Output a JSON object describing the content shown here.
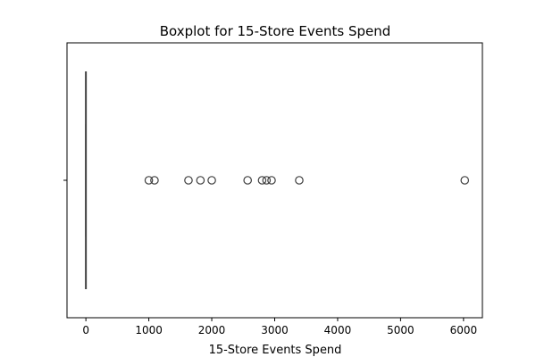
{
  "chart_data": {
    "type": "boxplot",
    "title": "Boxplot for 15-Store Events Spend",
    "xlabel": "15-Store Events Spend",
    "ylabel": "",
    "xlim": [
      -300,
      6300
    ],
    "x_ticks": [
      0,
      1000,
      2000,
      3000,
      4000,
      5000,
      6000
    ],
    "x_tick_labels": [
      "0",
      "1000",
      "2000",
      "3000",
      "4000",
      "5000",
      "6000"
    ],
    "orientation": "horizontal",
    "grid": false,
    "box": {
      "min": 0,
      "q1": 0,
      "median": 0,
      "q3": 0,
      "max": 0
    },
    "outliers": [
      1000,
      1090,
      1630,
      1820,
      2000,
      2570,
      2800,
      2870,
      2950,
      3390,
      6020
    ],
    "colors": {
      "box_line": "#3f3f3f",
      "outlier_edge": "#3f3f3f",
      "axes": "#000000",
      "background": "#ffffff"
    }
  }
}
